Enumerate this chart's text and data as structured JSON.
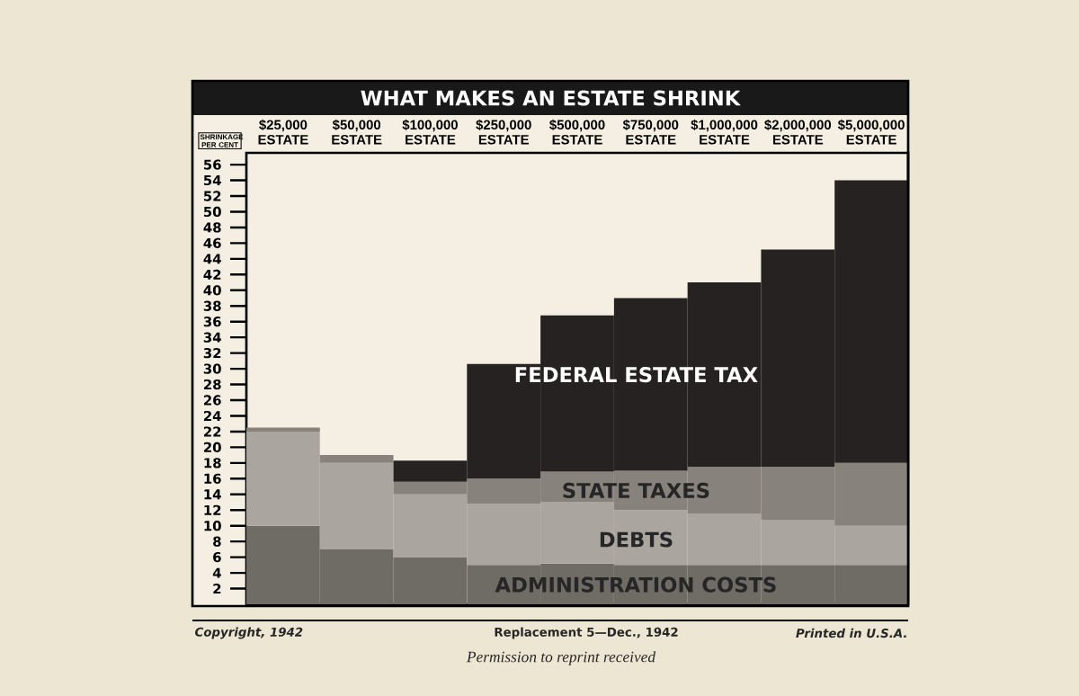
{
  "chart_data": {
    "type": "bar",
    "stacked": true,
    "title": "WHAT MAKES AN ESTATE SHRINK",
    "ylabel": "SHRINKAGE PER CENT",
    "categories": [
      "$25,000 ESTATE",
      "$50,000 ESTATE",
      "$100,000 ESTATE",
      "$250,000 ESTATE",
      "$500,000 ESTATE",
      "$750,000 ESTATE",
      "$1,000,000 ESTATE",
      "$2,000,000 ESTATE",
      "$5,000,000 ESTATE"
    ],
    "series": [
      {
        "name": "ADMINISTRATION COSTS",
        "color": "#6f6b65",
        "values": [
          10,
          7,
          6,
          5,
          5.2,
          5,
          5,
          5,
          5
        ]
      },
      {
        "name": "DEBTS",
        "color": "#aaa69f",
        "values": [
          12,
          11,
          8,
          7.8,
          7.8,
          7,
          6.5,
          5.7,
          5
        ]
      },
      {
        "name": "STATE TAXES",
        "color": "#87827b",
        "values": [
          0.5,
          1,
          1.6,
          3.2,
          3.9,
          5,
          6,
          6.8,
          8
        ]
      },
      {
        "name": "FEDERAL ESTATE TAX",
        "color": "#252221",
        "values": [
          0,
          0,
          2.7,
          14.6,
          19.9,
          22,
          23.5,
          27.7,
          36
        ]
      }
    ],
    "ylim": [
      0,
      57.5
    ],
    "yticks": [
      2,
      4,
      6,
      8,
      10,
      12,
      14,
      16,
      18,
      20,
      22,
      24,
      26,
      28,
      30,
      32,
      34,
      36,
      38,
      40,
      42,
      44,
      46,
      48,
      50,
      52,
      54,
      56
    ],
    "tick_labels": "y",
    "legend": "bottom",
    "annotations": [
      "Copyright, 1942",
      "Replacement 5—Dec., 1942",
      "Printed in U.S.A.",
      "Permission to reprint received"
    ]
  }
}
